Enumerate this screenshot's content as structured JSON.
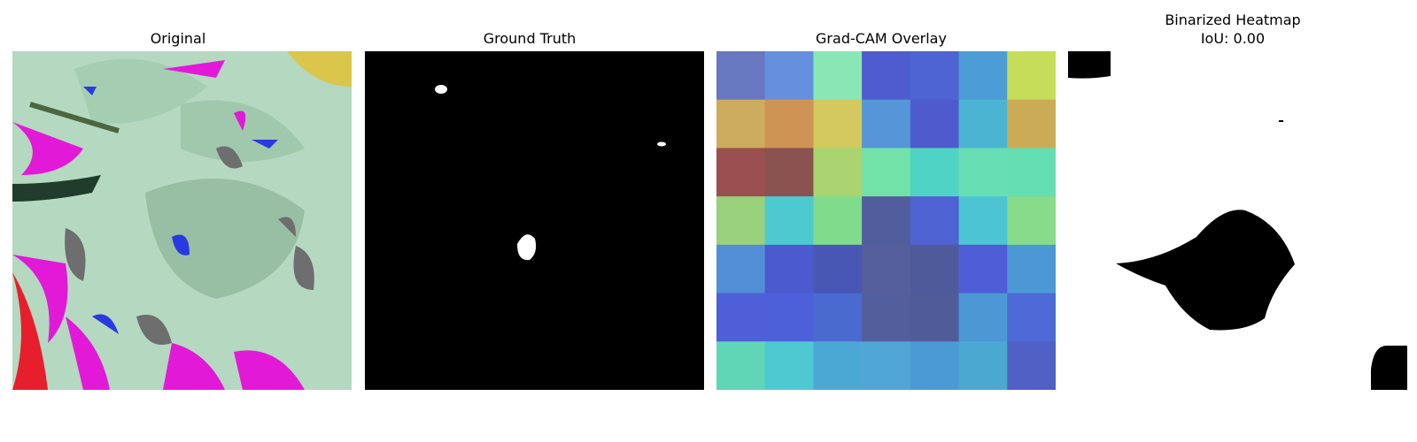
{
  "panels": [
    {
      "title": "Original"
    },
    {
      "title": "Ground Truth"
    },
    {
      "title": "Grad-CAM Overlay"
    },
    {
      "title": "Binarized Heatmap",
      "subtitle": "IoU: 0.00"
    }
  ],
  "gradcam_grid": [
    [
      "#6878c0",
      "#6590de",
      "#88e7b4",
      "#4f5ccf",
      "#4e64d3",
      "#4c9cd5",
      "#c6dd59"
    ],
    [
      "#ccac5e",
      "#cd9453",
      "#d3c95e",
      "#5496d8",
      "#4f5bcd",
      "#4bb4d3",
      "#ccab57"
    ],
    [
      "#9a5050",
      "#8a5350",
      "#a9d46f",
      "#72e2a9",
      "#4fd3c4",
      "#67deb3",
      "#64deb3"
    ],
    [
      "#99d17c",
      "#4ccad0",
      "#81db8d",
      "#525d9e",
      "#4e62d1",
      "#4cc4d3",
      "#87db8b"
    ],
    [
      "#528ed6",
      "#4c5acf",
      "#4856b4",
      "#545f9b",
      "#4f5a9b",
      "#4f5ed6",
      "#4c98d5"
    ],
    [
      "#4e5fd8",
      "#4e60d9",
      "#4a6ad0",
      "#535f9c",
      "#505c9a",
      "#4c98d4",
      "#4e6ad7"
    ],
    [
      "#61d6b7",
      "#4ec9d1",
      "#4ba8d4",
      "#50a6d6",
      "#4c9ad5",
      "#4aa8d1",
      "#5060c4"
    ]
  ]
}
